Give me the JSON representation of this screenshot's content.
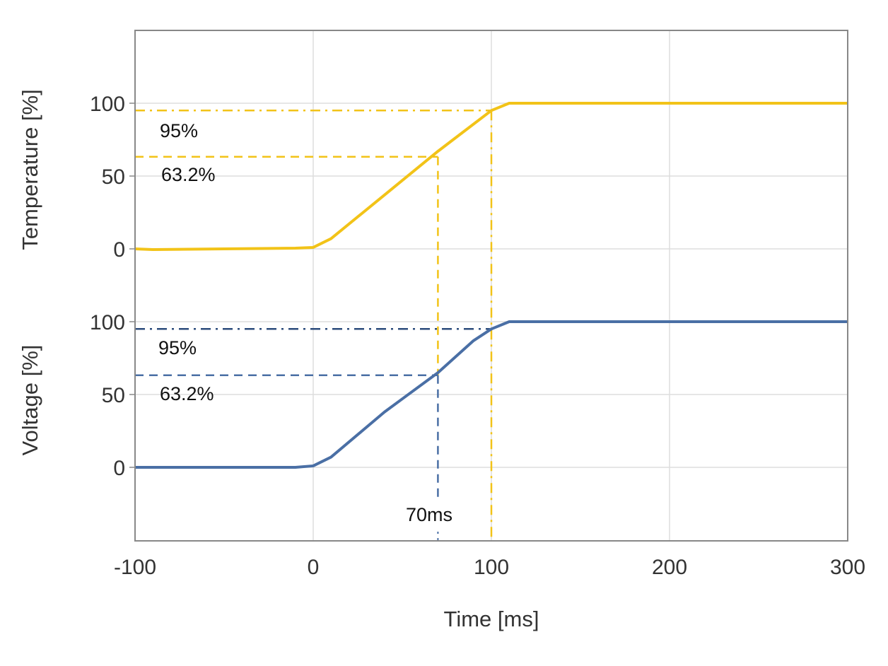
{
  "chart_data": {
    "type": "line",
    "xlabel": "Time [ms]",
    "xlim": [
      -100,
      300
    ],
    "xticks": [
      "-100",
      "0",
      "100",
      "200",
      "300"
    ],
    "grid": true,
    "panels": [
      {
        "ylabel": "Temperature [%]",
        "yticks": [
          "0",
          "50",
          "100"
        ],
        "color": "#f2c318",
        "x": [
          -100,
          -90,
          -50,
          -10,
          0,
          10,
          40,
          70,
          100,
          110,
          150,
          300
        ],
        "y": [
          0,
          -0.5,
          0,
          0.5,
          1,
          7,
          37,
          67,
          95,
          100,
          100,
          100
        ],
        "annotations": [
          "95%",
          "63.2%"
        ]
      },
      {
        "ylabel": "Voltage [%]",
        "yticks": [
          "0",
          "50",
          "100"
        ],
        "color": "#4a6fa5",
        "ref_color": "#2c4c7c",
        "x": [
          -100,
          -10,
          0,
          10,
          40,
          50,
          70,
          90,
          100,
          110,
          270,
          300
        ],
        "y": [
          0,
          0,
          1,
          7,
          38,
          47,
          65,
          87,
          95,
          100,
          100,
          100
        ],
        "annotations": [
          "95%",
          "63.2%"
        ]
      }
    ],
    "reference_levels": [
      95,
      63.2
    ],
    "time_constant_label": "70ms",
    "time_constant": 70,
    "settling_time": 100
  }
}
